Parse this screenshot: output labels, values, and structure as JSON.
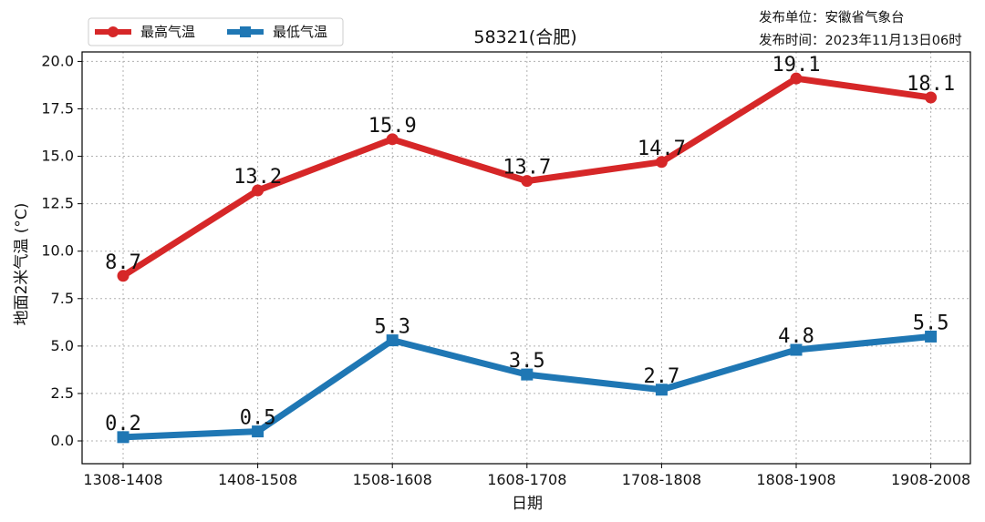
{
  "chart_data": {
    "type": "line",
    "title": "58321(合肥)",
    "xlabel": "日期",
    "ylabel": "地面2米气温 (°C)",
    "categories": [
      "1308-1408",
      "1408-1508",
      "1508-1608",
      "1608-1708",
      "1708-1808",
      "1808-1908",
      "1908-2008"
    ],
    "series": [
      {
        "name": "最高气温",
        "values": [
          8.7,
          13.2,
          15.9,
          13.7,
          14.7,
          19.1,
          18.1
        ],
        "color": "#d62728",
        "marker": "circle"
      },
      {
        "name": "最低气温",
        "values": [
          0.2,
          0.5,
          5.3,
          3.5,
          2.7,
          4.8,
          5.5
        ],
        "color": "#1f77b4",
        "marker": "square"
      }
    ],
    "yticks": [
      "0.0",
      "2.5",
      "5.0",
      "7.5",
      "10.0",
      "12.5",
      "15.0",
      "17.5",
      "20.0"
    ],
    "ylim": [
      -1.2,
      20.5
    ],
    "grid": true,
    "legend": "top-left"
  },
  "publish_info": {
    "unit": "发布单位：安徽省气象台",
    "time": "发布时间：2023年11月13日06时"
  }
}
